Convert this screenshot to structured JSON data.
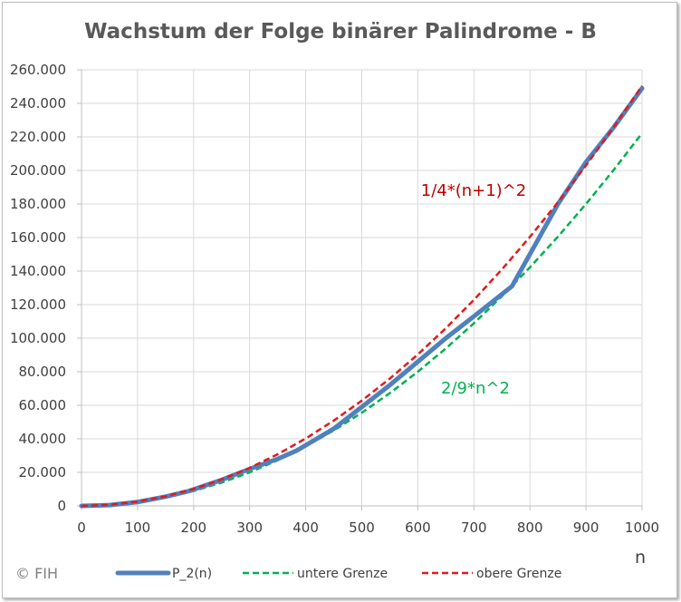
{
  "chart_data": {
    "type": "line",
    "title": "Wachstum der Folge binärer Palindrome - B",
    "xlabel": "n",
    "ylabel": "",
    "xlim": [
      0,
      1000
    ],
    "ylim": [
      0,
      260000
    ],
    "x_ticks": [
      0,
      100,
      200,
      300,
      400,
      500,
      600,
      700,
      800,
      900,
      1000
    ],
    "y_ticks": [
      0,
      20000,
      40000,
      60000,
      80000,
      100000,
      120000,
      140000,
      160000,
      180000,
      200000,
      220000,
      240000,
      260000
    ],
    "x_tick_labels": [
      "0",
      "100",
      "200",
      "300",
      "400",
      "500",
      "600",
      "700",
      "800",
      "900",
      "1000"
    ],
    "y_tick_labels": [
      "0",
      "20.000",
      "40.000",
      "60.000",
      "80.000",
      "100.000",
      "120.000",
      "140.000",
      "160.000",
      "180.000",
      "200.000",
      "220.000",
      "240.000",
      "260.000"
    ],
    "grid": true,
    "legend_position": "bottom",
    "series": [
      {
        "name": "P_2(n)",
        "color": "#4F81BD",
        "style": "solid",
        "x": [
          0,
          50,
          100,
          150,
          192,
          250,
          300,
          350,
          384,
          450,
          500,
          550,
          600,
          650,
          700,
          768,
          850,
          900,
          950,
          1000
        ],
        "y": [
          0,
          500,
          2300,
          5500,
          8900,
          15500,
          22000,
          28000,
          33000,
          46000,
          59000,
          72000,
          86000,
          100000,
          113000,
          131000,
          180000,
          205000,
          226000,
          249000
        ]
      },
      {
        "name": "untere Grenze",
        "color": "#00B050",
        "style": "dashed",
        "x": [
          0,
          50,
          100,
          150,
          200,
          250,
          300,
          350,
          400,
          450,
          500,
          550,
          600,
          650,
          700,
          750,
          800,
          850,
          900,
          950,
          1000
        ],
        "y": [
          0,
          556,
          2222,
          5000,
          8889,
          13889,
          20000,
          27222,
          35556,
          45000,
          55556,
          67222,
          80000,
          93889,
          108889,
          125000,
          142222,
          160556,
          180000,
          200556,
          222222
        ]
      },
      {
        "name": "obere Grenze",
        "color": "#E31A1C",
        "style": "dashed",
        "x": [
          0,
          50,
          100,
          150,
          200,
          250,
          300,
          350,
          400,
          450,
          500,
          550,
          600,
          650,
          700,
          750,
          800,
          850,
          900,
          950,
          1000
        ],
        "y": [
          0,
          650,
          2550,
          5700,
          10100,
          15750,
          22650,
          30800,
          40200,
          50850,
          62750,
          75900,
          90300,
          105950,
          122850,
          141000,
          160400,
          181050,
          202950,
          226100,
          250500
        ]
      }
    ],
    "annotations": [
      {
        "text": "1/4*(n+1)^2",
        "color": "#C00000"
      },
      {
        "text": "2/9*n^2",
        "color": "#00B050"
      }
    ]
  },
  "copyright": "© FIH"
}
